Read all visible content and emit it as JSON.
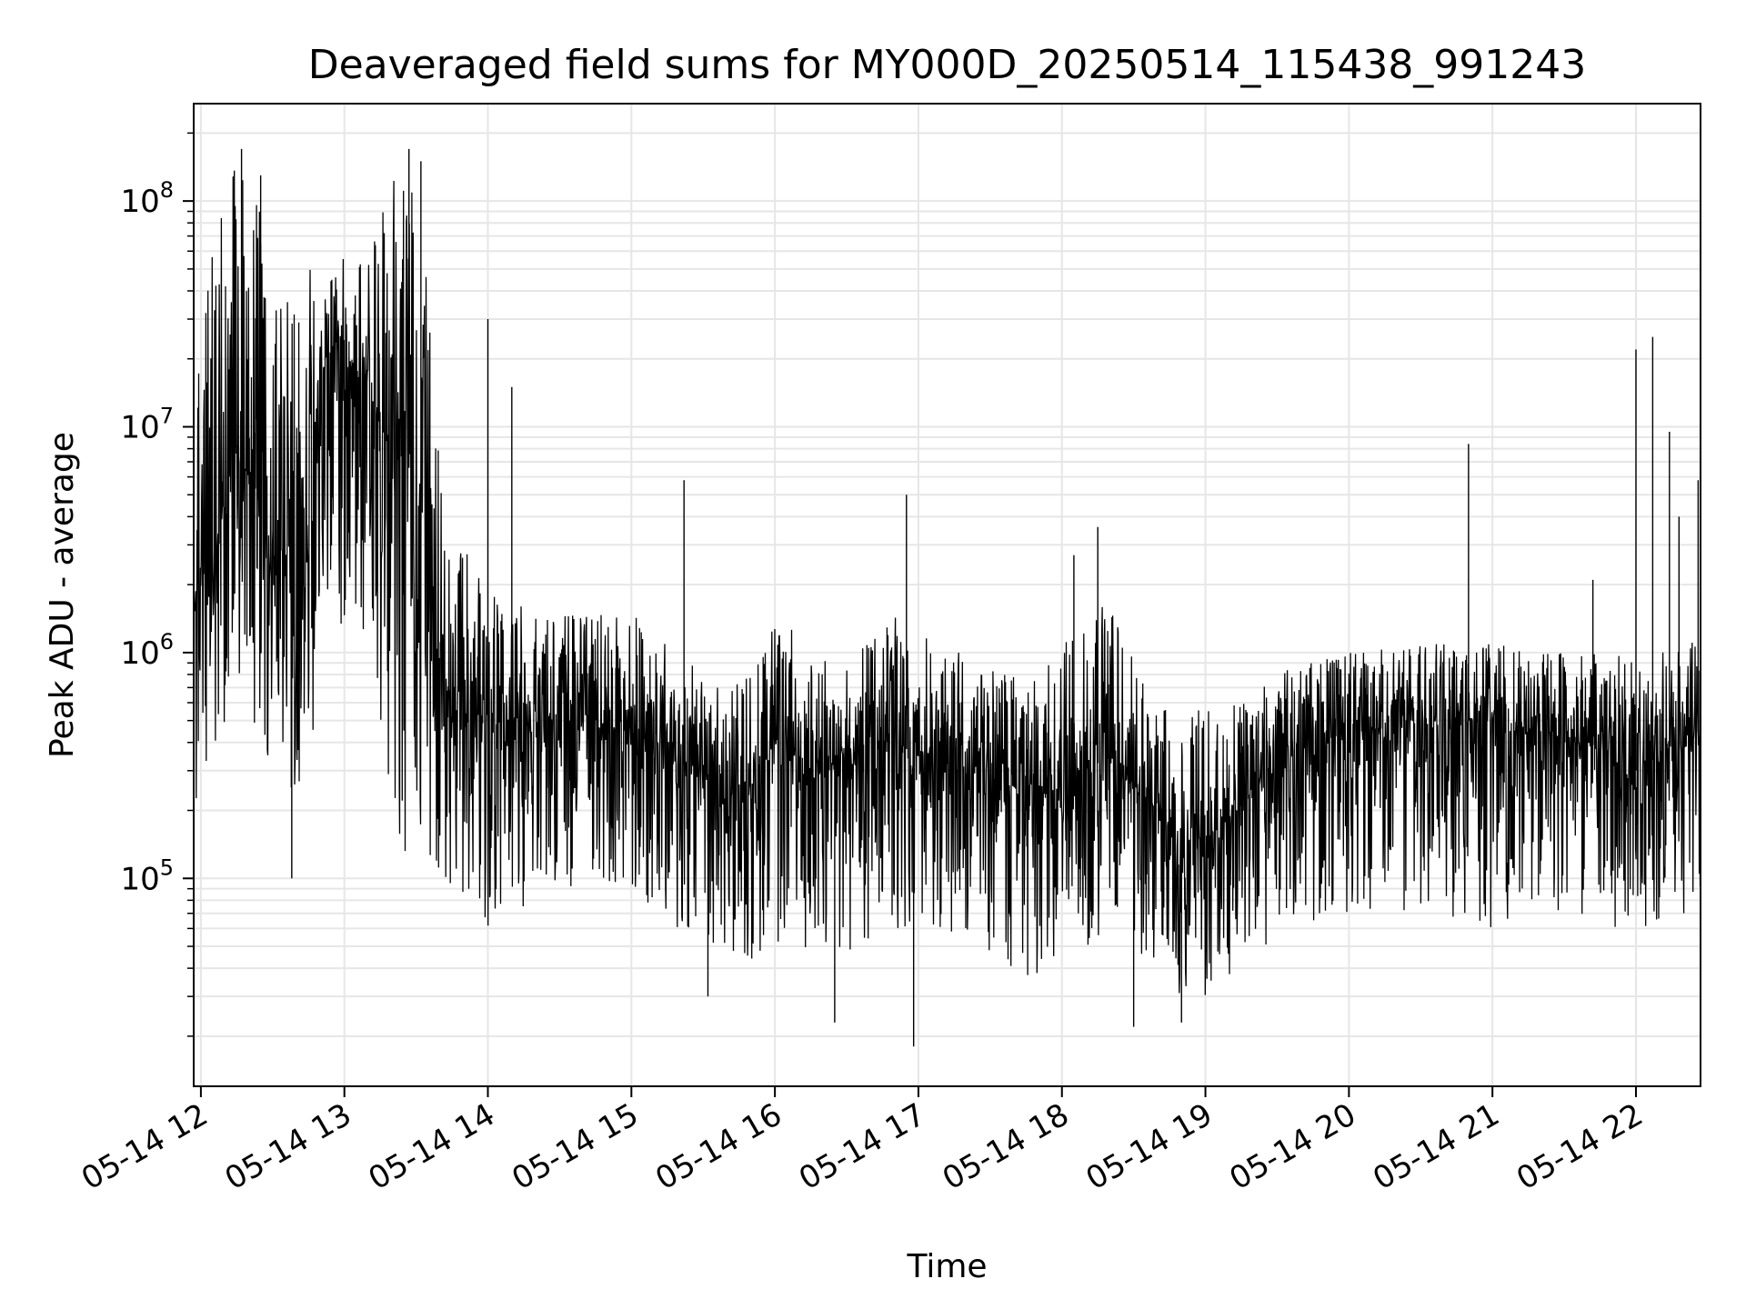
{
  "chart_data": {
    "type": "line",
    "title": "Deaveraged field sums for MY000D_20250514_115438_991243",
    "xlabel": "Time",
    "ylabel": "Peak ADU - average",
    "y_scale": "log",
    "ylim": [
      12000,
      270000000
    ],
    "xlim": [
      "2025-05-14 11:57",
      "2025-05-14 22:27"
    ],
    "x_tick_labels": [
      "05-14 12",
      "05-14 13",
      "05-14 14",
      "05-14 15",
      "05-14 16",
      "05-14 17",
      "05-14 18",
      "05-14 19",
      "05-14 20",
      "05-14 21",
      "05-14 22"
    ],
    "x_tick_values": [
      "2025-05-14 12:00",
      "2025-05-14 13:00",
      "2025-05-14 14:00",
      "2025-05-14 15:00",
      "2025-05-14 16:00",
      "2025-05-14 17:00",
      "2025-05-14 18:00",
      "2025-05-14 19:00",
      "2025-05-14 20:00",
      "2025-05-14 21:00",
      "2025-05-14 22:00"
    ],
    "y_ticks": [
      {
        "value": 100000,
        "base": "10",
        "exp": "5"
      },
      {
        "value": 1000000,
        "base": "10",
        "exp": "6"
      },
      {
        "value": 10000000,
        "base": "10",
        "exp": "7"
      },
      {
        "value": 100000000,
        "base": "10",
        "exp": "8"
      }
    ],
    "grid": true,
    "line_color": "#000000",
    "grid_color": "#e6e6e6",
    "series": [
      {
        "x": [
          "2025-05-14 11:57",
          "2025-05-14 12:05",
          "2025-05-14 12:10",
          "2025-05-14 12:15",
          "2025-05-14 12:20",
          "2025-05-14 12:25",
          "2025-05-14 12:30",
          "2025-05-14 12:35",
          "2025-05-14 12:40",
          "2025-05-14 12:45",
          "2025-05-14 12:50",
          "2025-05-14 12:55",
          "2025-05-14 13:00",
          "2025-05-14 13:05",
          "2025-05-14 13:10",
          "2025-05-14 13:15",
          "2025-05-14 13:20",
          "2025-05-14 13:25",
          "2025-05-14 13:30",
          "2025-05-14 13:35",
          "2025-05-14 13:40",
          "2025-05-14 13:45",
          "2025-05-14 13:50",
          "2025-05-14 13:55",
          "2025-05-14 14:00",
          "2025-05-14 14:10",
          "2025-05-14 14:20",
          "2025-05-14 14:30",
          "2025-05-14 14:40",
          "2025-05-14 14:50",
          "2025-05-14 15:00",
          "2025-05-14 15:10",
          "2025-05-14 15:20",
          "2025-05-14 15:30",
          "2025-05-14 15:40",
          "2025-05-14 15:50",
          "2025-05-14 16:00",
          "2025-05-14 16:10",
          "2025-05-14 16:20",
          "2025-05-14 16:30",
          "2025-05-14 16:40",
          "2025-05-14 16:50",
          "2025-05-14 17:00",
          "2025-05-14 17:10",
          "2025-05-14 17:20",
          "2025-05-14 17:30",
          "2025-05-14 17:40",
          "2025-05-14 17:50",
          "2025-05-14 18:00",
          "2025-05-14 18:10",
          "2025-05-14 18:20",
          "2025-05-14 18:30",
          "2025-05-14 18:40",
          "2025-05-14 18:50",
          "2025-05-14 19:00",
          "2025-05-14 19:10",
          "2025-05-14 19:20",
          "2025-05-14 19:30",
          "2025-05-14 19:40",
          "2025-05-14 19:50",
          "2025-05-14 20:00",
          "2025-05-14 20:10",
          "2025-05-14 20:20",
          "2025-05-14 20:30",
          "2025-05-14 20:40",
          "2025-05-14 20:50",
          "2025-05-14 21:00",
          "2025-05-14 21:10",
          "2025-05-14 21:20",
          "2025-05-14 21:30",
          "2025-05-14 21:40",
          "2025-05-14 21:50",
          "2025-05-14 22:00",
          "2025-05-14 22:10",
          "2025-05-14 22:20",
          "2025-05-14 22:27"
        ],
        "values": [
          1500000,
          2500000,
          5000000,
          8000000,
          6000000,
          4000000,
          3000000,
          2500000,
          2000000,
          3000000,
          15000000,
          25000000,
          20000000,
          18000000,
          15000000,
          10000000,
          8000000,
          7000000,
          6000000,
          2000000,
          800000,
          600000,
          500000,
          500000,
          500000,
          450000,
          450000,
          500000,
          500000,
          450000,
          450000,
          400000,
          350000,
          300000,
          250000,
          250000,
          400000,
          350000,
          300000,
          300000,
          400000,
          400000,
          350000,
          350000,
          300000,
          250000,
          250000,
          250000,
          200000,
          300000,
          350000,
          250000,
          200000,
          150000,
          150000,
          180000,
          250000,
          300000,
          350000,
          400000,
          450000,
          450000,
          500000,
          500000,
          500000,
          500000,
          500000,
          450000,
          450000,
          400000,
          400000,
          350000,
          300000,
          350000,
          400000,
          450000
        ],
        "lows": [
          200000,
          300000,
          400000,
          600000,
          500000,
          400000,
          300000,
          250000,
          200000,
          250000,
          800000,
          1500000,
          1200000,
          1000000,
          1500000,
          500000,
          150000,
          120000,
          120000,
          110000,
          100000,
          90000,
          80000,
          60000,
          60000,
          70000,
          80000,
          80000,
          90000,
          80000,
          80000,
          70000,
          60000,
          50000,
          45000,
          40000,
          50000,
          50000,
          45000,
          40000,
          50000,
          60000,
          60000,
          50000,
          50000,
          45000,
          40000,
          35000,
          45000,
          50000,
          55000,
          45000,
          40000,
          30000,
          30000,
          35000,
          45000,
          55000,
          60000,
          70000,
          70000,
          70000,
          70000,
          70000,
          65000,
          65000,
          60000,
          60000,
          60000,
          55000,
          55000,
          55000,
          60000,
          60000,
          70000,
          80000
        ],
        "highs": [
          25000000,
          60000000,
          120000000,
          150000000,
          120000000,
          90000000,
          60000000,
          40000000,
          30000000,
          50000000,
          60000000,
          70000000,
          60000000,
          55000000,
          60000000,
          120000000,
          150000000,
          140000000,
          100000000,
          40000000,
          8000000,
          4000000,
          3000000,
          2500000,
          2000000,
          1800000,
          1500000,
          1500000,
          1500000,
          1500000,
          1500000,
          1200000,
          1000000,
          800000,
          700000,
          800000,
          1500000,
          1200000,
          1000000,
          900000,
          1200000,
          1500000,
          1200000,
          1100000,
          1000000,
          900000,
          800000,
          800000,
          1000000,
          2500000,
          2000000,
          900000,
          600000,
          600000,
          600000,
          600000,
          700000,
          800000,
          900000,
          1000000,
          1000000,
          1000000,
          1100000,
          1100000,
          1100000,
          1100000,
          1100000,
          1100000,
          1000000,
          1000000,
          1000000,
          1000000,
          900000,
          1000000,
          1100000,
          1200000
        ]
      }
    ],
    "spikes": [
      {
        "x": "2025-05-14 12:17",
        "y": 170000000
      },
      {
        "x": "2025-05-14 12:25",
        "y": 130000000
      },
      {
        "x": "2025-05-14 12:38",
        "y": 100000
      },
      {
        "x": "2025-05-14 13:27",
        "y": 170000000
      },
      {
        "x": "2025-05-14 13:32",
        "y": 150000000
      },
      {
        "x": "2025-05-14 14:00",
        "y": 30000000
      },
      {
        "x": "2025-05-14 14:10",
        "y": 15000000
      },
      {
        "x": "2025-05-14 15:22",
        "y": 5800000
      },
      {
        "x": "2025-05-14 15:32",
        "y": 30000
      },
      {
        "x": "2025-05-14 16:25",
        "y": 23000
      },
      {
        "x": "2025-05-14 16:55",
        "y": 5000000
      },
      {
        "x": "2025-05-14 16:58",
        "y": 18000
      },
      {
        "x": "2025-05-14 18:05",
        "y": 2700000
      },
      {
        "x": "2025-05-14 18:15",
        "y": 3600000
      },
      {
        "x": "2025-05-14 18:30",
        "y": 22000
      },
      {
        "x": "2025-05-14 18:50",
        "y": 23000
      },
      {
        "x": "2025-05-14 20:50",
        "y": 8400000
      },
      {
        "x": "2025-05-14 21:42",
        "y": 2100000
      },
      {
        "x": "2025-05-14 22:00",
        "y": 22000000
      },
      {
        "x": "2025-05-14 22:07",
        "y": 25000000
      },
      {
        "x": "2025-05-14 22:14",
        "y": 9500000
      },
      {
        "x": "2025-05-14 22:18",
        "y": 4000000
      },
      {
        "x": "2025-05-14 22:26",
        "y": 5800000
      }
    ]
  }
}
